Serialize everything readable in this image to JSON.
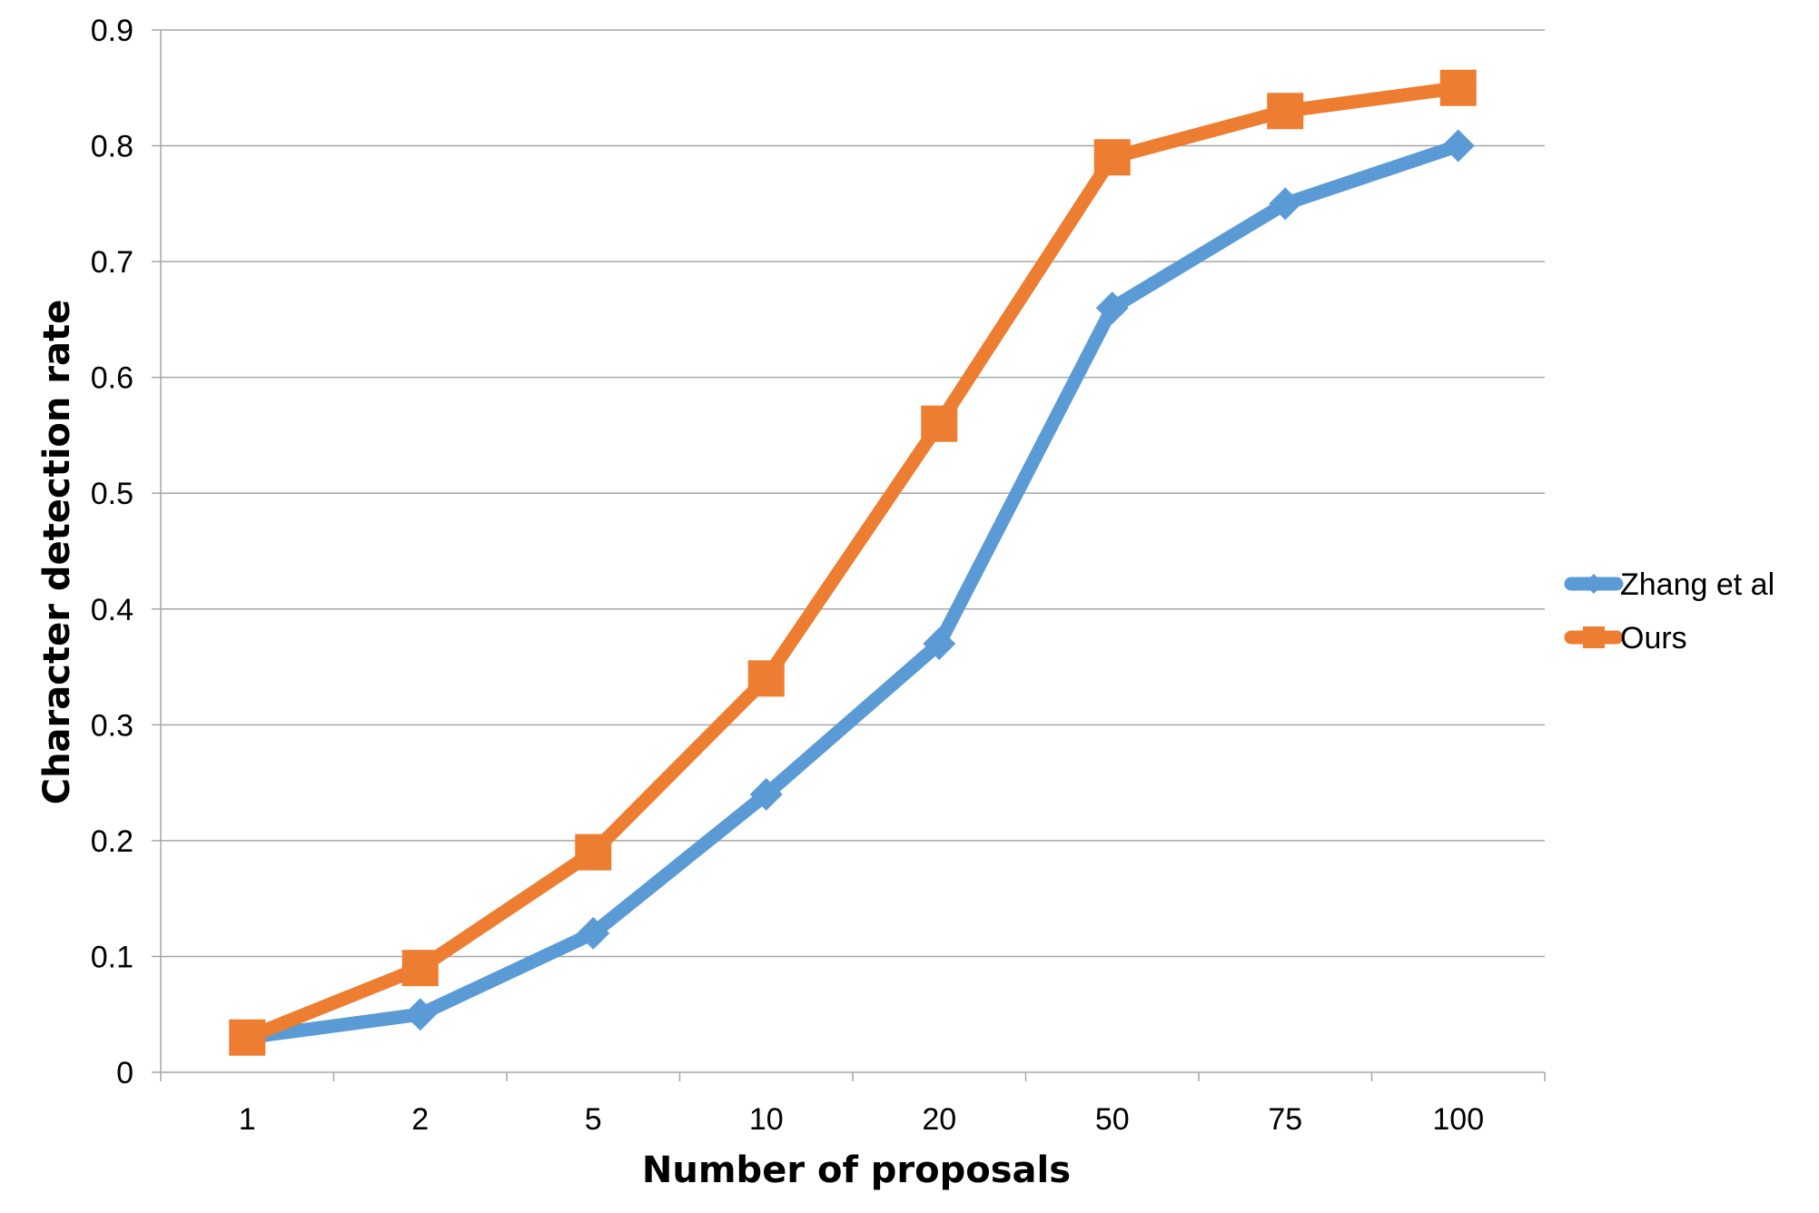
{
  "chart_data": {
    "type": "line",
    "title": "",
    "xlabel": "Number of proposals",
    "ylabel": "Character detection rate",
    "categories": [
      "1",
      "2",
      "5",
      "10",
      "20",
      "50",
      "75",
      "100"
    ],
    "ylim": [
      0,
      0.9
    ],
    "yticks": [
      0,
      0.1,
      0.2,
      0.3,
      0.4,
      0.5,
      0.6,
      0.7,
      0.8,
      0.9
    ],
    "grid": true,
    "legend_position": "right",
    "series": [
      {
        "name": "Zhang et al",
        "values": [
          0.03,
          0.05,
          0.12,
          0.24,
          0.37,
          0.66,
          0.75,
          0.8
        ],
        "color": "#5B9BD5",
        "marker": "diamond"
      },
      {
        "name": "Ours",
        "values": [
          0.03,
          0.09,
          0.19,
          0.34,
          0.56,
          0.79,
          0.83,
          0.85
        ],
        "color": "#ED7D31",
        "marker": "square"
      }
    ]
  }
}
